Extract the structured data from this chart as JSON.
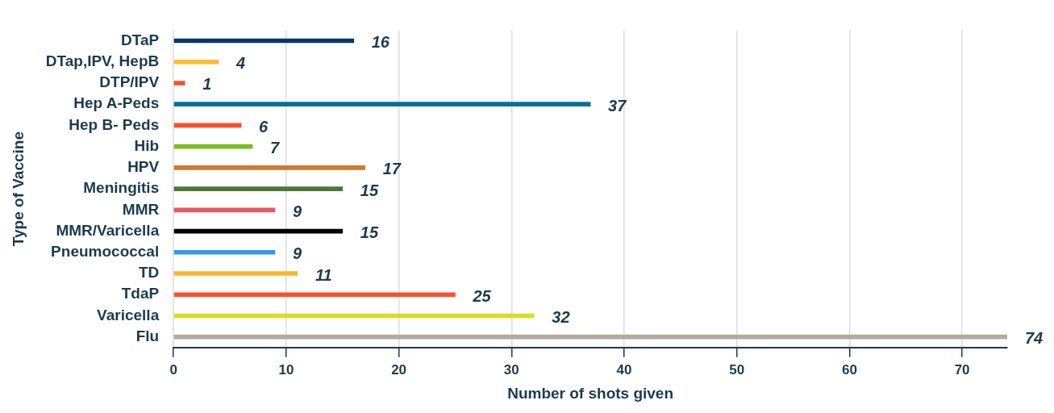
{
  "chart_data": {
    "type": "bar",
    "orientation": "horizontal",
    "xlabel": "Number of shots given",
    "ylabel": "Type of Vaccine",
    "categories": [
      "DTaP",
      "DTap,IPV, HepB",
      "DTP/IPV",
      "Hep A-Peds",
      "Hep B- Peds",
      "Hib",
      "HPV",
      "Meningitis",
      "MMR",
      "MMR/Varicella",
      "Pneumococcal",
      "TD",
      "TdaP",
      "Varicella",
      "Flu"
    ],
    "values": [
      16,
      4,
      1,
      37,
      6,
      7,
      17,
      15,
      9,
      15,
      9,
      11,
      25,
      32,
      74
    ],
    "colors": [
      "#003865",
      "#fbbd2e",
      "#fc4c2b",
      "#007398",
      "#fc4c2b",
      "#78be20",
      "#d0782c",
      "#4a773c",
      "#e35a5a",
      "#000000",
      "#3399e6",
      "#fbb52e",
      "#fc4c2b",
      "#d7df23",
      "#b1a9a3"
    ],
    "xlim": [
      0,
      74
    ],
    "xticks": [
      0,
      10,
      20,
      30,
      40,
      50,
      60,
      70
    ],
    "grid": "x",
    "data_labels": true,
    "legend": false
  }
}
